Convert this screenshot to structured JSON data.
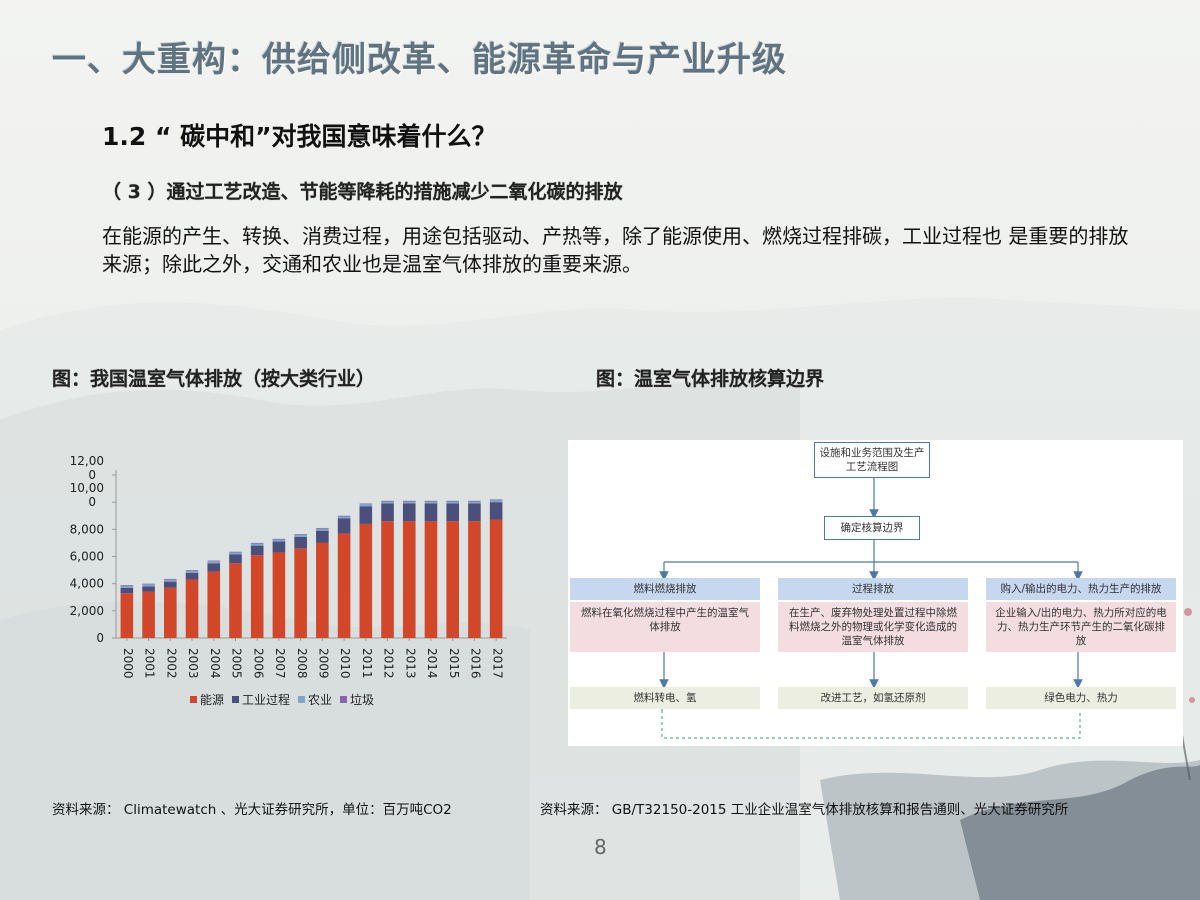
{
  "header": {
    "title": "一、大重构：供给侧改革、能源革命与产业升级"
  },
  "section": {
    "subtitle": "1.2 “ 碳中和”对我国意味着什么？",
    "heading": "（ 3 ）通过工艺改造、节能等降耗的措施减少二氧化碳的排放",
    "paragraph": "在能源的产生、转换、消费过程，用途包括驱动、产热等，除了能源使用、燃烧过程排碳，工业过程也 是重要的排放来源；除此之外，交通和农业也是温室气体排放的重要来源。"
  },
  "figures": {
    "left_title": "图：我国温室气体排放（按大类行业）",
    "right_title": "图：温室气体排放核算边界",
    "left_source": "资料来源： Climatewatch 、光大证券研究所，单位：百万吨CO2",
    "right_source": "资料来源： GB/T32150-2015 工业企业温室气体排放核算和报告通则、光大证券研究所"
  },
  "page_number": "8",
  "chart_data": {
    "type": "bar",
    "stacked": true,
    "categories": [
      "2000",
      "2001",
      "2002",
      "2003",
      "2004",
      "2005",
      "2006",
      "2007",
      "2008",
      "2009",
      "2010",
      "2011",
      "2012",
      "2013",
      "2014",
      "2015",
      "2016",
      "2017"
    ],
    "x_tick_labels": [
      "200\n0",
      "200\n1",
      "200\n2",
      "200\n3",
      "200\n4",
      "200\n5",
      "200\n6",
      "200\n7",
      "200\n8",
      "200\n9",
      "201\n0",
      "201\n1",
      "201\n2",
      "201\n3",
      "201\n4",
      "201\n5",
      "201\n6",
      "201\n7"
    ],
    "y_tick_labels": [
      "0",
      "2,000",
      "4,000",
      "6,000",
      "8,000",
      "10,00\n0",
      "12,00\n0"
    ],
    "ylim": [
      0,
      12000
    ],
    "series": [
      {
        "name": "能源",
        "color": "#d2472a",
        "values": [
          3300,
          3400,
          3700,
          4300,
          4900,
          5500,
          6100,
          6300,
          6600,
          7000,
          7700,
          8400,
          8600,
          8600,
          8600,
          8600,
          8600,
          8700
        ]
      },
      {
        "name": "工业过程",
        "color": "#4a4f7c",
        "values": [
          400,
          400,
          450,
          500,
          600,
          650,
          700,
          800,
          850,
          900,
          1100,
          1300,
          1300,
          1300,
          1300,
          1300,
          1300,
          1300
        ]
      },
      {
        "name": "农业",
        "color": "#7fa6c9",
        "values": [
          150,
          150,
          150,
          150,
          150,
          150,
          150,
          150,
          150,
          150,
          150,
          150,
          150,
          150,
          150,
          150,
          150,
          150
        ]
      },
      {
        "name": "垃圾",
        "color": "#8a63a8",
        "values": [
          50,
          50,
          50,
          50,
          50,
          50,
          50,
          50,
          50,
          50,
          50,
          50,
          50,
          50,
          50,
          50,
          50,
          50
        ]
      }
    ]
  },
  "flowchart": {
    "top": "设施和业务范围及生产工艺流程图",
    "middle": "确定核算边界",
    "columns": [
      {
        "header": "燃料燃烧排放",
        "body": "燃料在氧化燃烧过程中产生的温室气体排放",
        "bottom": "燃料转电、氢"
      },
      {
        "header": "过程排放",
        "body": "在生产、废弃物处理处置过程中除燃料燃烧之外的物理或化学变化造成的温室气体排放",
        "bottom": "改进工艺，如氢还原剂"
      },
      {
        "header": "购入/输出的电力、热力生产的排放",
        "body": "企业输入/出的电力、热力所对应的电力、热力生产环节产生的二氧化碳排放",
        "bottom": "绿色电力、热力"
      }
    ]
  }
}
